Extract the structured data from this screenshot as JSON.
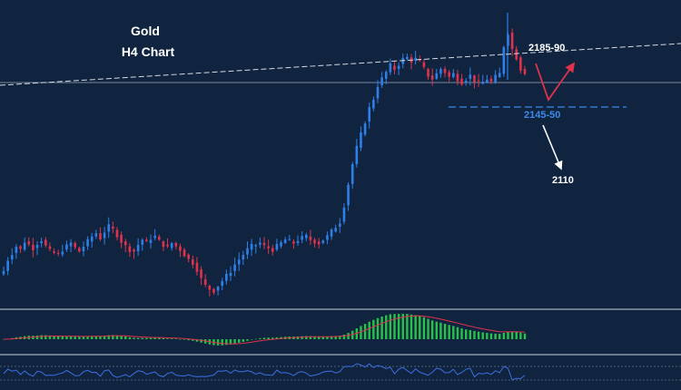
{
  "chart_data": {
    "type": "candlestick",
    "title": "Gold",
    "subtitle": "H4 Chart",
    "annotations": [
      {
        "id": "resistance",
        "text": "2185-90",
        "color": "#ffffff"
      },
      {
        "id": "support",
        "text": "2145-50",
        "color": "#3d8be8"
      },
      {
        "id": "target",
        "text": "2110",
        "color": "#ffffff"
      }
    ],
    "ohlc_path": [
      2045,
      2052,
      2056,
      2060,
      2058,
      2063,
      2061,
      2059,
      2062,
      2064,
      2060,
      2057,
      2056,
      2055,
      2058,
      2060,
      2062,
      2059,
      2057,
      2060,
      2063,
      2066,
      2068,
      2065,
      2069,
      2072,
      2070,
      2067,
      2063,
      2060,
      2058,
      2057,
      2061,
      2064,
      2062,
      2065,
      2066,
      2063,
      2061,
      2059,
      2062,
      2060,
      2058,
      2055,
      2052,
      2050,
      2046,
      2040,
      2036,
      2034,
      2033,
      2036,
      2039,
      2042,
      2045,
      2049,
      2052,
      2055,
      2058,
      2060,
      2061,
      2062,
      2060,
      2059,
      2058,
      2060,
      2062,
      2064,
      2063,
      2062,
      2064,
      2065,
      2066,
      2064,
      2063,
      2062,
      2064,
      2066,
      2069,
      2072,
      2075,
      2085,
      2098,
      2110,
      2120,
      2128,
      2136,
      2144,
      2150,
      2158,
      2162,
      2166,
      2170,
      2168,
      2171,
      2174,
      2175,
      2173,
      2174,
      2172,
      2168,
      2164,
      2162,
      2165,
      2168,
      2166,
      2163,
      2165,
      2162,
      2160,
      2162,
      2164,
      2161,
      2159,
      2160,
      2162,
      2160,
      2163,
      2165,
      2182,
      2190,
      2180,
      2175,
      2168,
      2166
    ],
    "colors": {
      "bull": "#2f7fe8",
      "bear": "#e0324a",
      "background": "#102440",
      "macd_hist": "#27c24a",
      "macd_signal": "#e0324a",
      "rsi": "#3d6fe0"
    }
  }
}
